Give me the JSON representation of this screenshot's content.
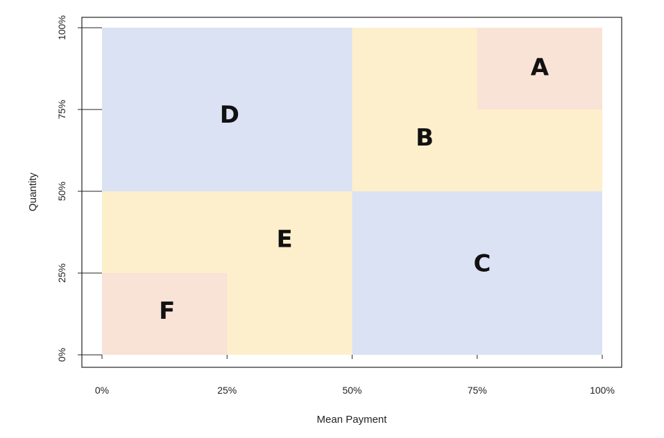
{
  "chart_data": {
    "type": "heatmap",
    "title": "",
    "xlabel": "Mean Payment",
    "ylabel": "Quantity",
    "xlim": [
      0,
      100
    ],
    "ylim": [
      0,
      100
    ],
    "x_ticks": [
      "0%",
      "25%",
      "50%",
      "75%",
      "100%"
    ],
    "y_ticks": [
      "0%",
      "25%",
      "50%",
      "75%",
      "100%"
    ],
    "grid": false,
    "regions": [
      {
        "label": "A",
        "x": [
          75,
          100
        ],
        "y": [
          75,
          100
        ],
        "color": "#f9e2d6",
        "label_x": 87.5,
        "label_y": 87.5
      },
      {
        "label": "B",
        "x": [
          50,
          100
        ],
        "y": [
          50,
          100
        ],
        "color": "#fdefcc",
        "label_x": 64.5,
        "label_y": 66
      },
      {
        "label": "C",
        "x": [
          50,
          100
        ],
        "y": [
          0,
          50
        ],
        "color": "#dae2f3",
        "label_x": 76,
        "label_y": 27.5
      },
      {
        "label": "D",
        "x": [
          0,
          50
        ],
        "y": [
          50,
          100
        ],
        "color": "#dae2f3",
        "label_x": 25.5,
        "label_y": 73
      },
      {
        "label": "E",
        "x": [
          0,
          50
        ],
        "y": [
          0,
          50
        ],
        "color": "#fdefcc",
        "label_x": 36.5,
        "label_y": 35
      },
      {
        "label": "F",
        "x": [
          0,
          25
        ],
        "y": [
          0,
          25
        ],
        "color": "#f9e2d6",
        "label_x": 13,
        "label_y": 13
      }
    ]
  }
}
